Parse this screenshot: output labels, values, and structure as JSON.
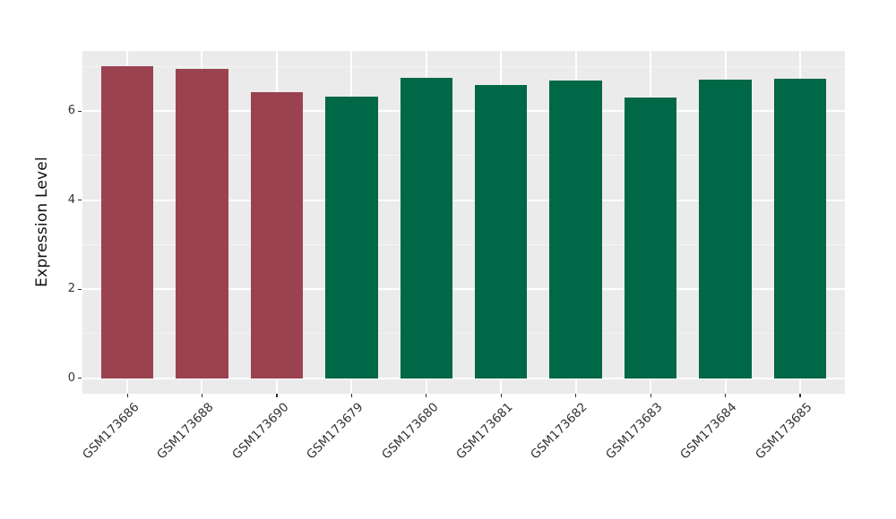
{
  "chart_data": {
    "type": "bar",
    "title": "",
    "xlabel": "",
    "ylabel": "Expression Level",
    "categories": [
      "GSM173686",
      "GSM173688",
      "GSM173690",
      "GSM173679",
      "GSM173680",
      "GSM173681",
      "GSM173682",
      "GSM173683",
      "GSM173684",
      "GSM173685"
    ],
    "values": [
      7.0,
      6.95,
      6.42,
      6.32,
      6.75,
      6.58,
      6.68,
      6.31,
      6.7,
      6.73
    ],
    "bar_colors": [
      "#9B4250",
      "#9B4250",
      "#9B4250",
      "#006747",
      "#006747",
      "#006747",
      "#006747",
      "#006747",
      "#006747",
      "#006747"
    ],
    "group_colors": {
      "highlighted_samples": "#9B4250",
      "other_samples": "#006747"
    },
    "yticks": [
      0,
      2,
      4,
      6
    ],
    "minor_yticks": [
      1,
      3,
      5,
      7
    ],
    "ylim": [
      -0.35,
      7.35
    ],
    "bar_width_fraction": 0.7,
    "grid": "on",
    "legend": "none",
    "colors": {
      "figure_background": "#FFFFFF",
      "panel_background": "#EBEBEB",
      "grid_major": "#FFFFFF",
      "grid_minor": "#F5F5F5",
      "axis_tick": "#333333",
      "tick_text": "#333333",
      "axis_title_text": "#111111"
    }
  }
}
